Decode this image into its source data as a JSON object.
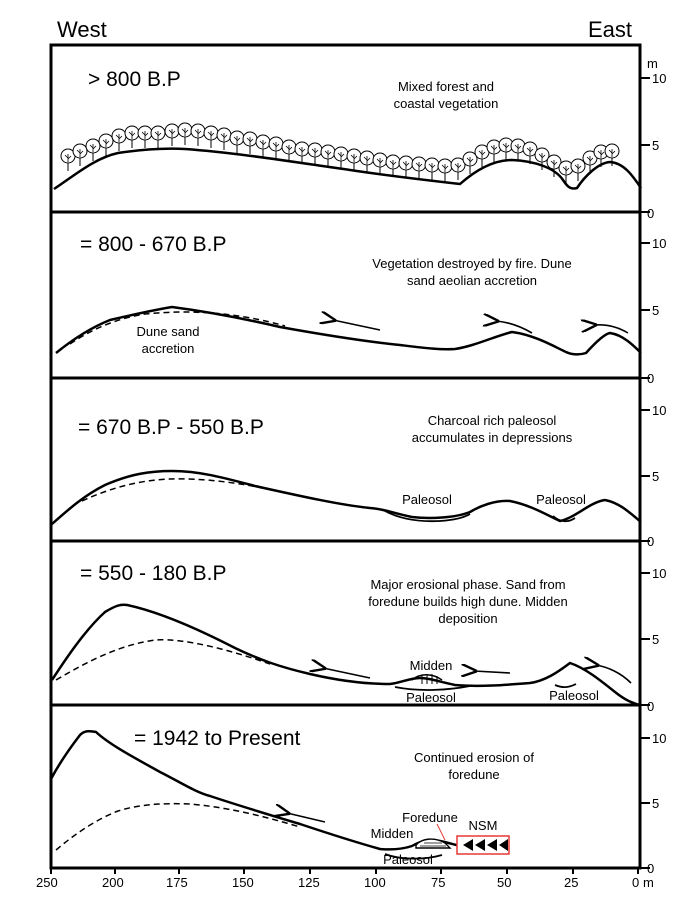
{
  "directions": {
    "west": "West",
    "east": "East"
  },
  "axis": {
    "x_unit": "m",
    "y_unit": "m",
    "x_ticks": [
      "250",
      "200",
      "175",
      "150",
      "125",
      "100",
      "75",
      "50",
      "25",
      "0"
    ],
    "y_ticks": [
      "10",
      "5",
      "0"
    ]
  },
  "panels": [
    {
      "period": "> 800 B.P",
      "caption_lines": [
        "Mixed forest and",
        "coastal vegetation"
      ]
    },
    {
      "period": "= 800  - 670 B.P",
      "caption_lines": [
        "Vegetation destroyed by fire. Dune",
        "sand aeolian accretion"
      ],
      "labels": [
        "Dune sand",
        "accretion"
      ]
    },
    {
      "period": "= 670 B.P - 550 B.P",
      "caption_lines": [
        "Charcoal rich paleosol",
        "accumulates in depressions"
      ],
      "labels": [
        "Paleosol",
        "Paleosol"
      ]
    },
    {
      "period": "= 550 - 180 B.P",
      "caption_lines": [
        "Major erosional phase. Sand from",
        "foredune builds high dune. Midden",
        "deposition"
      ],
      "labels": [
        "Midden",
        "Paleosol",
        "Paleosol"
      ]
    },
    {
      "period": "= 1942 to Present",
      "caption_lines": [
        "Continued erosion of",
        "foredune"
      ],
      "labels": [
        "Foredune",
        "Midden",
        "Paleosol",
        "NSM"
      ]
    }
  ],
  "colors": {
    "nsm_marker": "#e53935"
  }
}
